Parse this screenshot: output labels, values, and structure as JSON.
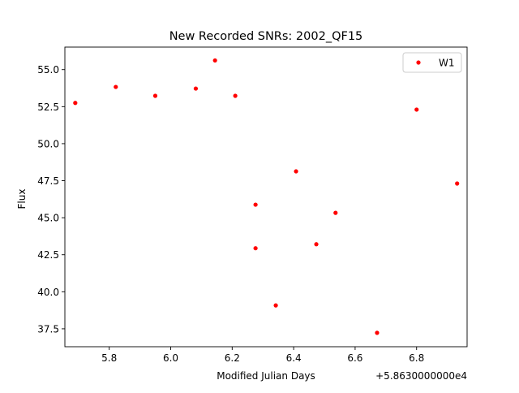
{
  "chart_data": {
    "type": "scatter",
    "title": "New Recorded SNRs: 2002_QF15",
    "xlabel": "Modified Julian Days",
    "ylabel": "Flux",
    "x_offset_label": "+5.8630000000e4",
    "xlim": [
      5.6557,
      6.9643
    ],
    "ylim": [
      36.29,
      56.52
    ],
    "xticks": [
      5.8,
      6.0,
      6.2,
      6.4,
      6.6,
      6.8
    ],
    "xtick_labels": [
      "5.8",
      "6.0",
      "6.2",
      "6.4",
      "6.6",
      "6.8"
    ],
    "yticks": [
      37.5,
      40.0,
      42.5,
      45.0,
      47.5,
      50.0,
      52.5,
      55.0
    ],
    "ytick_labels": [
      "37.5",
      "40.0",
      "42.5",
      "45.0",
      "47.5",
      "50.0",
      "52.5",
      "55.0"
    ],
    "grid": false,
    "legend_position": "top-right",
    "series": [
      {
        "name": "W1",
        "color": "#ff0000",
        "marker": "circle",
        "points": [
          {
            "x": 5.6895,
            "y": 52.75
          },
          {
            "x": 5.8213,
            "y": 53.83
          },
          {
            "x": 5.9498,
            "y": 53.23
          },
          {
            "x": 6.0816,
            "y": 53.72
          },
          {
            "x": 6.1442,
            "y": 55.62
          },
          {
            "x": 6.2101,
            "y": 53.23
          },
          {
            "x": 6.276,
            "y": 45.88
          },
          {
            "x": 6.276,
            "y": 42.94
          },
          {
            "x": 6.3419,
            "y": 39.08
          },
          {
            "x": 6.4078,
            "y": 48.13
          },
          {
            "x": 6.4737,
            "y": 43.21
          },
          {
            "x": 6.5363,
            "y": 45.33
          },
          {
            "x": 6.6714,
            "y": 37.23
          },
          {
            "x": 6.8,
            "y": 52.3
          },
          {
            "x": 6.9318,
            "y": 47.31
          }
        ]
      }
    ]
  }
}
